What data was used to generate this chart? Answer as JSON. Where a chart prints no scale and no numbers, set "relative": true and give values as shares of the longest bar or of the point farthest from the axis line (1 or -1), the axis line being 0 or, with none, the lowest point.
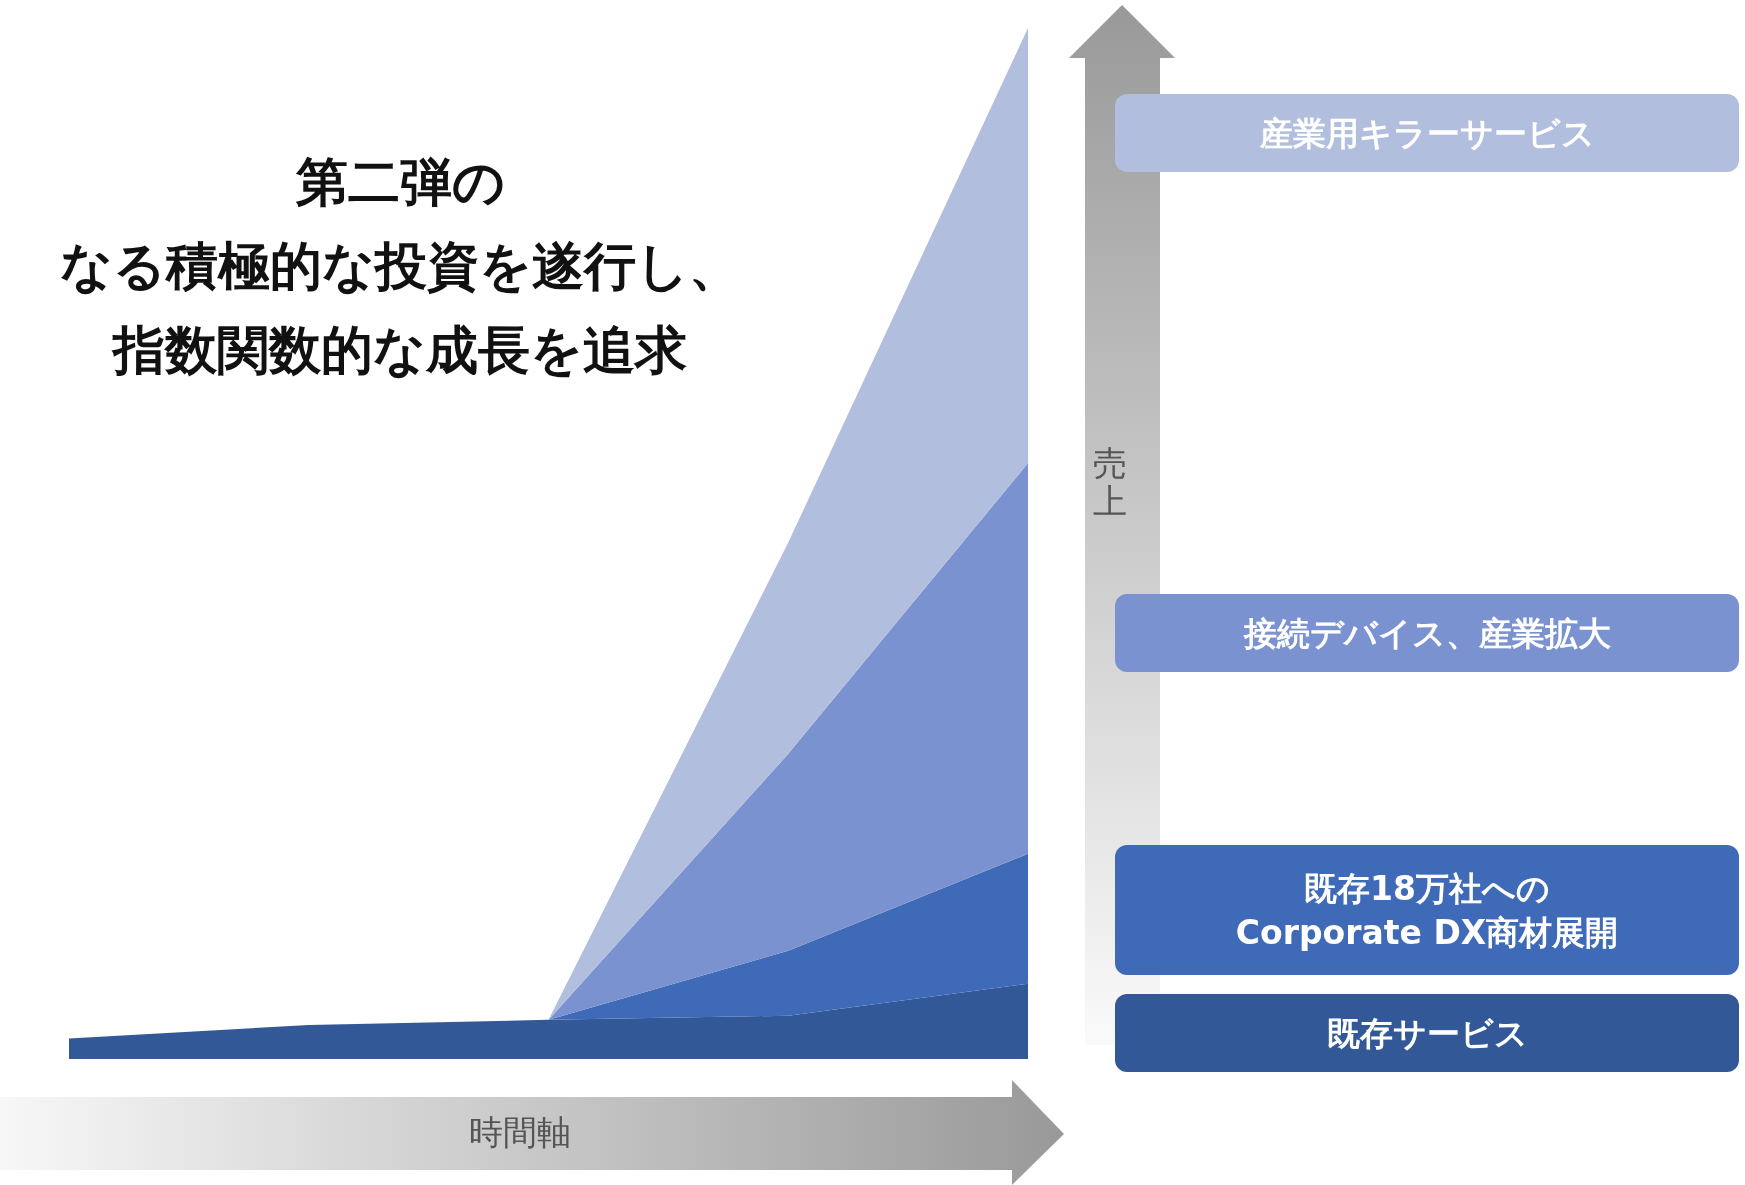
{
  "chart_data": {
    "type": "area",
    "stacked": true,
    "relative": true,
    "title": "第二弾の",
    "annotations": [
      "なる積極的な投資を遂行し、",
      "指数関数的な成長を追求"
    ],
    "xlabel": "時間軸",
    "ylabel": "売上",
    "legend": "right",
    "categories": [
      null,
      null,
      null,
      null,
      null
    ],
    "series": [
      {
        "name": "既存サービス",
        "color": "#335897",
        "values": [
          0.02,
          0.033,
          0.038,
          0.042,
          0.073
        ]
      },
      {
        "name": "既存18万社への\nCorporate DX商材展開",
        "color": "#3f6ab8",
        "values": [
          0,
          0,
          0,
          0.063,
          0.126
        ]
      },
      {
        "name": "接続デバイス、産業拡大",
        "color": "#7a92cf",
        "values": [
          0,
          0,
          0,
          0.191,
          0.379
        ]
      },
      {
        "name": "産業用キラーサービス",
        "color": "#b2bede",
        "values": [
          0,
          0,
          0,
          0.205,
          0.422
        ]
      }
    ]
  }
}
